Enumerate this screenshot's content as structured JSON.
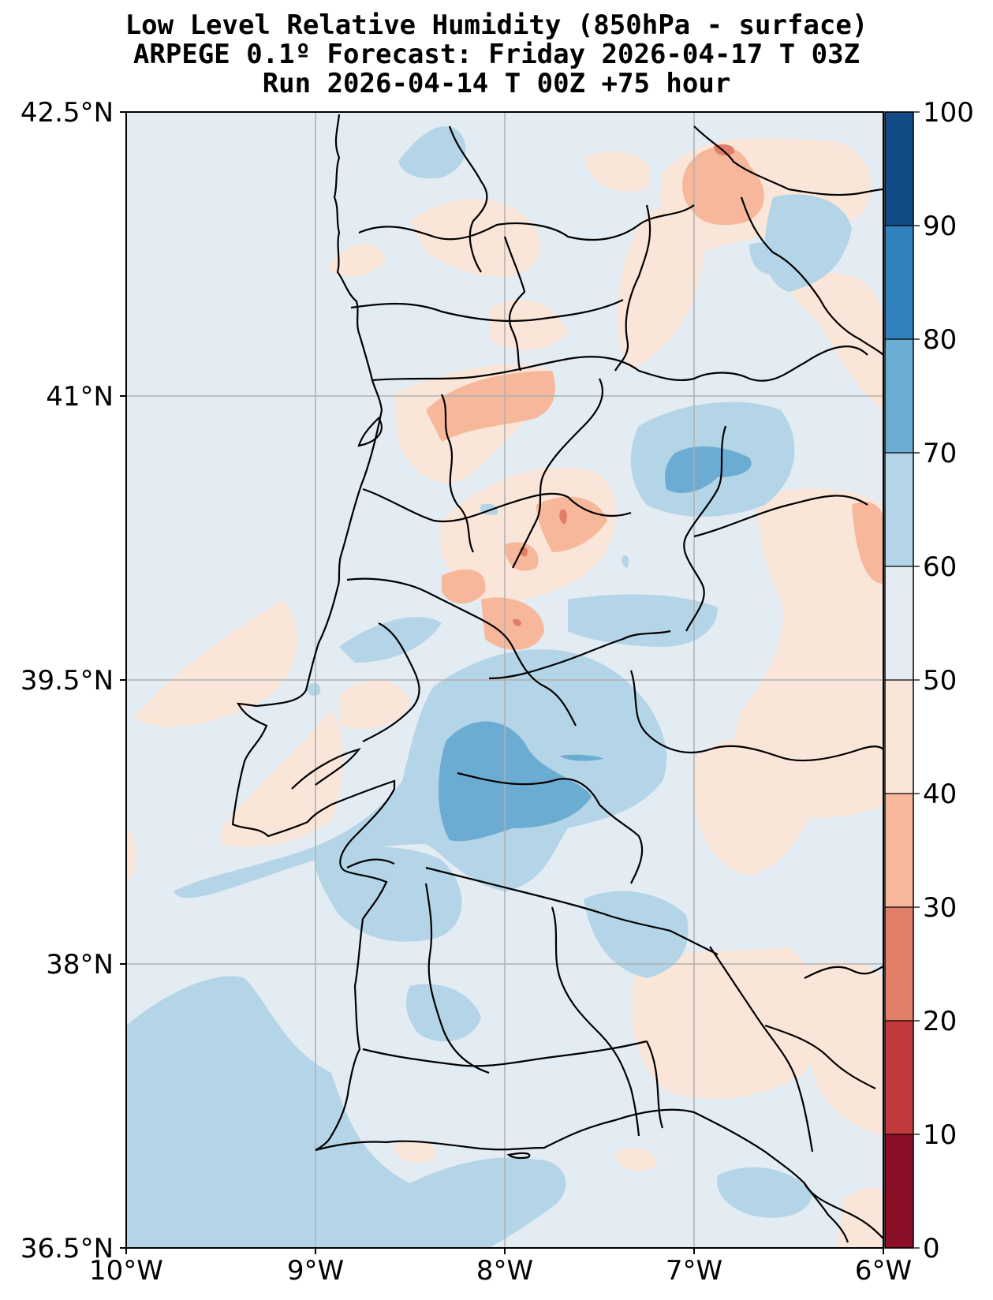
{
  "title": {
    "line1": "Low Level Relative Humidity (850hPa - surface)",
    "line2": "ARPEGE 0.1º Forecast: Friday 2026-04-17 T 03Z",
    "line3": "Run 2026-04-14 T 00Z +75 hour"
  },
  "map": {
    "lat_labels": [
      "42.5°N",
      "41°N",
      "39.5°N",
      "38°N",
      "36.5°N"
    ],
    "lon_labels": [
      "10°W",
      "9°W",
      "8°W",
      "7°W",
      "6°W"
    ],
    "lat_range": [
      36.5,
      42.5
    ],
    "lon_range": [
      -10,
      -6
    ]
  },
  "colorbar": {
    "levels": [
      0,
      10,
      20,
      30,
      40,
      50,
      60,
      70,
      80,
      90,
      100
    ],
    "tick_labels": [
      "0",
      "10",
      "20",
      "30",
      "40",
      "50",
      "60",
      "70",
      "80",
      "90",
      "100"
    ],
    "colors": [
      "#8b0f26",
      "#c23a3d",
      "#e17e67",
      "#f6b79b",
      "#fae5d9",
      "#e3ebf3",
      "#b4d5e7",
      "#6badd2",
      "#3181bd",
      "#134b87"
    ]
  }
}
